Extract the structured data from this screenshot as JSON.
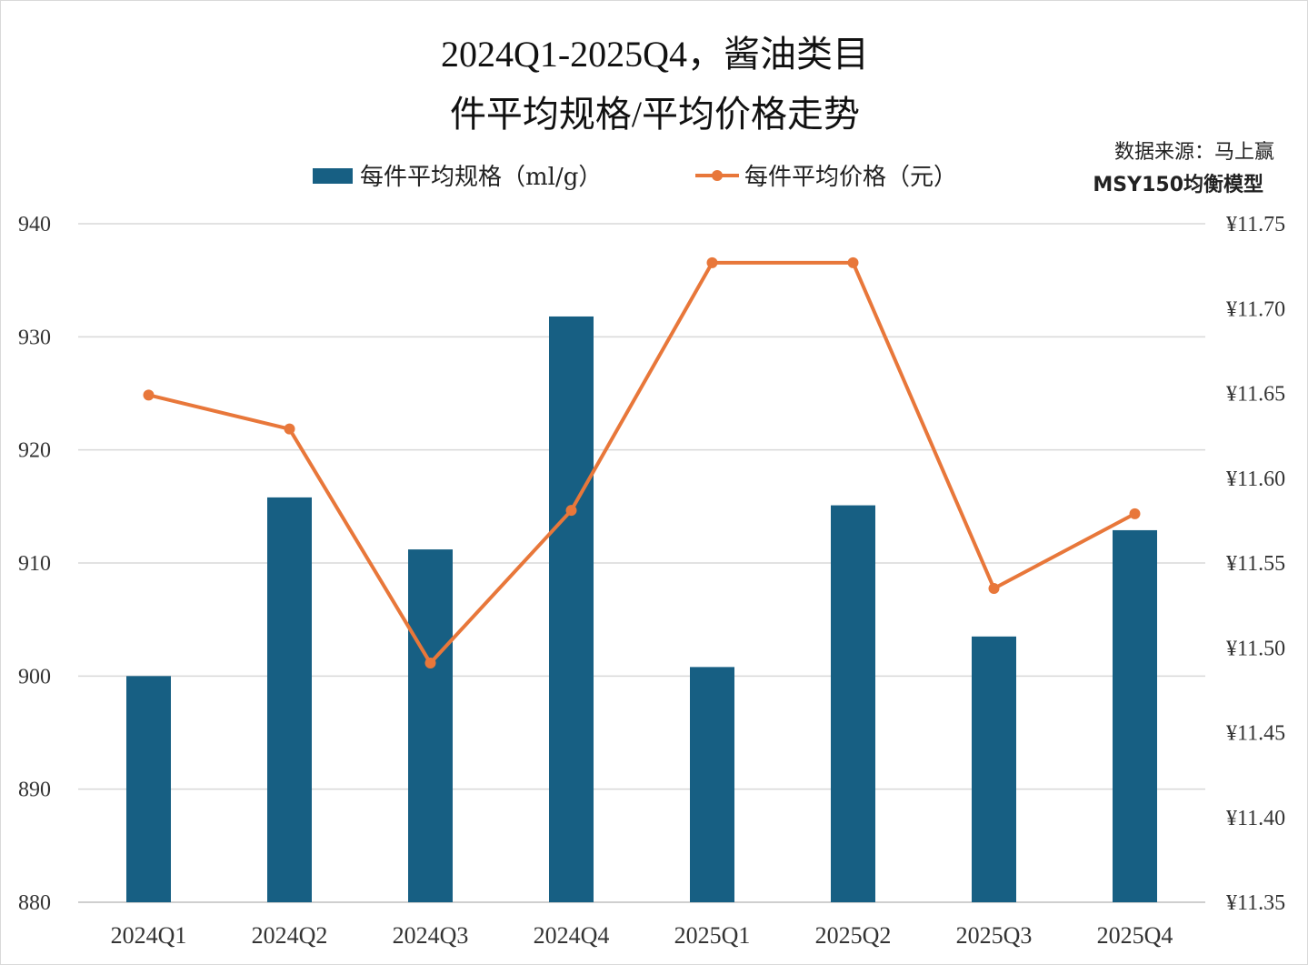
{
  "chart_data": {
    "type": "bar+line",
    "title_line1": "2024Q1-2025Q4，酱油类目",
    "title_line2": "件平均规格/平均价格走势",
    "source_line1": "数据来源：马上赢",
    "source_line2": "MSY150均衡模型",
    "categories": [
      "2024Q1",
      "2024Q2",
      "2024Q3",
      "2024Q4",
      "2025Q1",
      "2025Q2",
      "2025Q3",
      "2025Q4"
    ],
    "series": [
      {
        "name": "每件平均规格（ml/g）",
        "type": "bar",
        "axis": "left",
        "color": "#175f83",
        "values": [
          900.0,
          915.8,
          911.2,
          931.8,
          900.8,
          915.1,
          903.5,
          912.9
        ]
      },
      {
        "name": "每件平均价格（元）",
        "type": "line",
        "axis": "right",
        "color": "#e8773a",
        "values": [
          11.649,
          11.629,
          11.491,
          11.581,
          11.727,
          11.727,
          11.535,
          11.579
        ]
      }
    ],
    "left_axis": {
      "min": 880,
      "max": 940,
      "ticks": [
        "880",
        "890",
        "900",
        "910",
        "920",
        "930",
        "940"
      ]
    },
    "right_axis": {
      "min": 11.35,
      "max": 11.75,
      "ticks": [
        "¥11.35",
        "¥11.40",
        "¥11.45",
        "¥11.50",
        "¥11.55",
        "¥11.60",
        "¥11.65",
        "¥11.70",
        "¥11.75"
      ]
    },
    "grid": true,
    "legend_position": "top"
  }
}
